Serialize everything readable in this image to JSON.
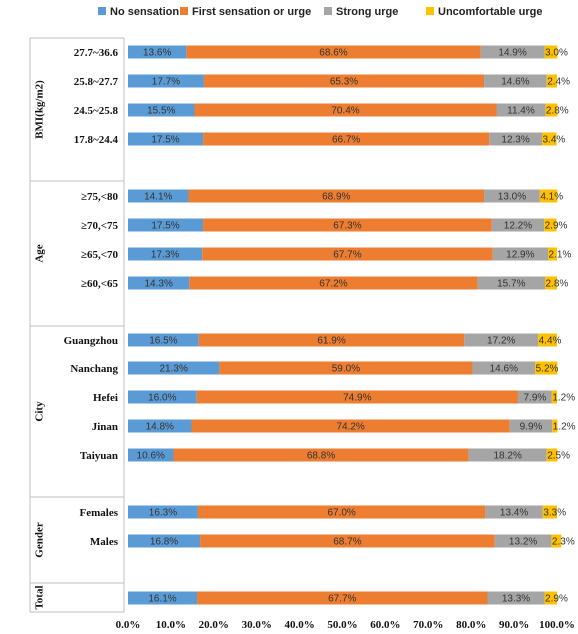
{
  "chart_data": {
    "type": "bar",
    "orientation": "horizontal",
    "stacked": "percent",
    "legend_position": "top",
    "grid": false,
    "xlim": [
      0,
      100
    ],
    "x_ticks": [
      "0.0%",
      "10.0%",
      "20.0%",
      "30.0%",
      "40.0%",
      "50.0%",
      "60.0%",
      "70.0%",
      "80.0%",
      "90.0%",
      "100.0%"
    ],
    "series": [
      {
        "name": "No sensation",
        "color": "#5B9BD5"
      },
      {
        "name": "First sensation or urge",
        "color": "#ED7D31"
      },
      {
        "name": "Strong urge",
        "color": "#A5A5A5"
      },
      {
        "name": "Uncomfortable urge",
        "color": "#FFC000"
      }
    ],
    "groups": [
      {
        "name": "BMI(kg/m2)",
        "categories": [
          {
            "label": "27.7~36.6",
            "values": [
              13.6,
              68.6,
              14.9,
              3.0
            ],
            "labels": [
              "13.6%",
              "68.6%",
              "14.9%",
              "3.0%"
            ]
          },
          {
            "label": "25.8~27.7",
            "values": [
              17.7,
              65.3,
              14.6,
              2.4
            ],
            "labels": [
              "17.7%",
              "65.3%",
              "14.6%",
              "2.4%"
            ]
          },
          {
            "label": "24.5~25.8",
            "values": [
              15.5,
              70.4,
              11.4,
              2.8
            ],
            "labels": [
              "15.5%",
              "70.4%",
              "11.4%",
              "2.8%"
            ]
          },
          {
            "label": "17.8~24.4",
            "values": [
              17.5,
              66.7,
              12.3,
              3.4
            ],
            "labels": [
              "17.5%",
              "66.7%",
              "12.3%",
              "3.4%"
            ]
          }
        ]
      },
      {
        "name": "Age",
        "categories": [
          {
            "label": "≥75,<80",
            "values": [
              14.1,
              68.9,
              13.0,
              4.1
            ],
            "labels": [
              "14.1%",
              "68.9%",
              "13.0%",
              "4.1%"
            ]
          },
          {
            "label": "≥70,<75",
            "values": [
              17.5,
              67.3,
              12.2,
              2.9
            ],
            "labels": [
              "17.5%",
              "67.3%",
              "12.2%",
              "2.9%"
            ]
          },
          {
            "label": "≥65,<70",
            "values": [
              17.3,
              67.7,
              12.9,
              2.1
            ],
            "labels": [
              "17.3%",
              "67.7%",
              "12.9%",
              "2.1%"
            ]
          },
          {
            "label": "≥60,<65",
            "values": [
              14.3,
              67.2,
              15.7,
              2.8
            ],
            "labels": [
              "14.3%",
              "67.2%",
              "15.7%",
              "2.8%"
            ]
          }
        ]
      },
      {
        "name": "City",
        "categories": [
          {
            "label": "Guangzhou",
            "values": [
              16.5,
              61.9,
              17.2,
              4.4
            ],
            "labels": [
              "16.5%",
              "61.9%",
              "17.2%",
              "4.4%"
            ]
          },
          {
            "label": "Nanchang",
            "values": [
              21.3,
              59.0,
              14.6,
              5.2
            ],
            "labels": [
              "21.3%",
              "59.0%",
              "14.6%",
              "5.2%"
            ]
          },
          {
            "label": "Hefei",
            "values": [
              16.0,
              74.9,
              7.9,
              1.2
            ],
            "labels": [
              "16.0%",
              "74.9%",
              "7.9%",
              "1.2%"
            ]
          },
          {
            "label": "Jinan",
            "values": [
              14.8,
              74.2,
              9.9,
              1.2
            ],
            "labels": [
              "14.8%",
              "74.2%",
              "9.9%",
              "1.2%"
            ]
          },
          {
            "label": "Taiyuan",
            "values": [
              10.6,
              68.8,
              18.2,
              2.5
            ],
            "labels": [
              "10.6%",
              "68.8%",
              "18.2%",
              "2.5%"
            ]
          }
        ]
      },
      {
        "name": "Gender",
        "categories": [
          {
            "label": "Females",
            "values": [
              16.3,
              67.0,
              13.4,
              3.3
            ],
            "labels": [
              "16.3%",
              "67.0%",
              "13.4%",
              "3.3%"
            ]
          },
          {
            "label": "Males",
            "values": [
              16.8,
              68.7,
              13.2,
              2.3
            ],
            "labels": [
              "16.8%",
              "68.7%",
              "13.2%",
              "2.3%"
            ]
          }
        ]
      },
      {
        "name": "Total",
        "categories": [
          {
            "label": "",
            "values": [
              16.1,
              67.7,
              13.3,
              2.9
            ],
            "labels": [
              "16.1%",
              "67.7%",
              "13.3%",
              "2.9%"
            ]
          }
        ]
      }
    ]
  }
}
